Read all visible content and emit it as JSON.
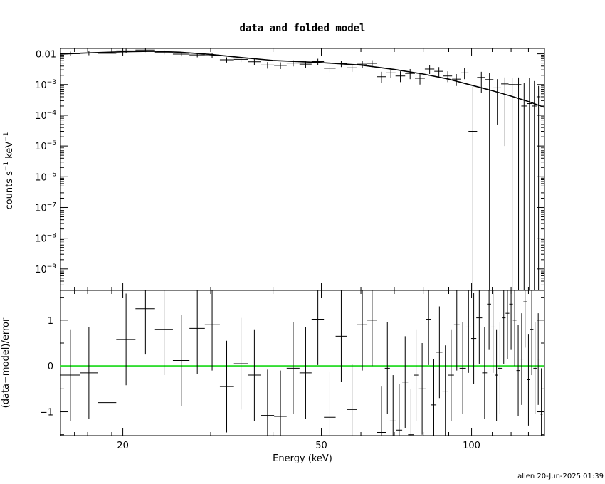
{
  "chart_data": [
    {
      "type": "scatter",
      "panel": "spectrum",
      "title": "data and folded model",
      "xlabel": "Energy (keV)",
      "ylabel_main": "counts s",
      "ylabel_sup1": "−1",
      "ylabel_mid": " keV",
      "ylabel_sup2": "−1",
      "x_scale": "log",
      "y_scale": "log",
      "xlim": [
        15,
        140
      ],
      "ylim": [
        2e-10,
        0.015
      ],
      "y_ticks": [
        {
          "value": 0.01,
          "label": "0.01"
        },
        {
          "value": 0.001,
          "base": "10",
          "exp": "−3"
        },
        {
          "value": 0.0001,
          "base": "10",
          "exp": "−4"
        },
        {
          "value": 1e-05,
          "base": "10",
          "exp": "−5"
        },
        {
          "value": 1e-06,
          "base": "10",
          "exp": "−6"
        },
        {
          "value": 1e-07,
          "base": "10",
          "exp": "−7"
        },
        {
          "value": 1e-08,
          "base": "10",
          "exp": "−8"
        },
        {
          "value": 1e-09,
          "base": "10",
          "exp": "−9"
        }
      ],
      "series": [
        {
          "kind": "data",
          "points": [
            {
              "x": 15.7,
              "xl": 15.0,
              "xh": 16.4,
              "y": 0.0101,
              "yl": 0.0085,
              "yh": 0.0118
            },
            {
              "x": 17.1,
              "xl": 16.4,
              "xh": 17.8,
              "y": 0.0107,
              "yl": 0.009,
              "yh": 0.0125
            },
            {
              "x": 18.6,
              "xl": 17.8,
              "xh": 19.4,
              "y": 0.0104,
              "yl": 0.0088,
              "yh": 0.0122
            },
            {
              "x": 20.3,
              "xl": 19.4,
              "xh": 21.2,
              "y": 0.0125,
              "yl": 0.0107,
              "yh": 0.0145
            },
            {
              "x": 22.2,
              "xl": 21.2,
              "xh": 23.2,
              "y": 0.0133,
              "yl": 0.0114,
              "yh": 0.0148
            },
            {
              "x": 24.2,
              "xl": 23.2,
              "xh": 25.2,
              "y": 0.0113,
              "yl": 0.0096,
              "yh": 0.0131
            },
            {
              "x": 26.2,
              "xl": 25.2,
              "xh": 27.2,
              "y": 0.0098,
              "yl": 0.0083,
              "yh": 0.0114
            },
            {
              "x": 28.2,
              "xl": 27.2,
              "xh": 29.2,
              "y": 0.0092,
              "yl": 0.0077,
              "yh": 0.0108
            },
            {
              "x": 30.2,
              "xl": 29.2,
              "xh": 31.3,
              "y": 0.0088,
              "yl": 0.0073,
              "yh": 0.0104
            },
            {
              "x": 32.3,
              "xl": 31.3,
              "xh": 33.4,
              "y": 0.0064,
              "yl": 0.0052,
              "yh": 0.0077
            },
            {
              "x": 34.5,
              "xl": 33.4,
              "xh": 35.6,
              "y": 0.0066,
              "yl": 0.0054,
              "yh": 0.0079
            },
            {
              "x": 36.7,
              "xl": 35.6,
              "xh": 37.8,
              "y": 0.0055,
              "yl": 0.0044,
              "yh": 0.0067
            },
            {
              "x": 39.0,
              "xl": 37.8,
              "xh": 40.2,
              "y": 0.0043,
              "yl": 0.0033,
              "yh": 0.0054
            },
            {
              "x": 41.4,
              "xl": 40.2,
              "xh": 42.6,
              "y": 0.0042,
              "yl": 0.0032,
              "yh": 0.0053
            },
            {
              "x": 43.9,
              "xl": 42.6,
              "xh": 45.2,
              "y": 0.005,
              "yl": 0.0039,
              "yh": 0.0062
            },
            {
              "x": 46.5,
              "xl": 45.2,
              "xh": 47.8,
              "y": 0.0046,
              "yl": 0.0035,
              "yh": 0.0058
            },
            {
              "x": 49.2,
              "xl": 47.8,
              "xh": 50.6,
              "y": 0.0056,
              "yl": 0.0044,
              "yh": 0.0069
            },
            {
              "x": 52.0,
              "xl": 50.6,
              "xh": 53.4,
              "y": 0.0034,
              "yl": 0.0025,
              "yh": 0.0044
            },
            {
              "x": 54.8,
              "xl": 53.4,
              "xh": 56.2,
              "y": 0.0048,
              "yl": 0.0037,
              "yh": 0.006
            },
            {
              "x": 57.6,
              "xl": 56.2,
              "xh": 59.0,
              "y": 0.0035,
              "yl": 0.0026,
              "yh": 0.0046
            },
            {
              "x": 60.4,
              "xl": 59.0,
              "xh": 61.8,
              "y": 0.0046,
              "yl": 0.0035,
              "yh": 0.0058
            },
            {
              "x": 63.2,
              "xl": 61.8,
              "xh": 64.6,
              "y": 0.0049,
              "yl": 0.0037,
              "yh": 0.0062
            },
            {
              "x": 66.0,
              "xl": 64.6,
              "xh": 67.4,
              "y": 0.0018,
              "yl": 0.0011,
              "yh": 0.0026
            },
            {
              "x": 68.9,
              "xl": 67.4,
              "xh": 70.4,
              "y": 0.0024,
              "yl": 0.0016,
              "yh": 0.0033
            },
            {
              "x": 72.0,
              "xl": 70.4,
              "xh": 73.6,
              "y": 0.0019,
              "yl": 0.0012,
              "yh": 0.0027
            },
            {
              "x": 75.3,
              "xl": 73.6,
              "xh": 77.0,
              "y": 0.0023,
              "yl": 0.0015,
              "yh": 0.0032
            },
            {
              "x": 78.8,
              "xl": 77.0,
              "xh": 80.6,
              "y": 0.0016,
              "yl": 0.001,
              "yh": 0.0023
            },
            {
              "x": 82.4,
              "xl": 80.6,
              "xh": 84.2,
              "y": 0.0032,
              "yl": 0.0022,
              "yh": 0.0043
            },
            {
              "x": 86.0,
              "xl": 84.2,
              "xh": 87.8,
              "y": 0.0027,
              "yl": 0.0018,
              "yh": 0.0037
            },
            {
              "x": 89.6,
              "xl": 87.8,
              "xh": 91.4,
              "y": 0.0019,
              "yl": 0.0012,
              "yh": 0.0027
            },
            {
              "x": 93.2,
              "xl": 91.4,
              "xh": 95.0,
              "y": 0.0015,
              "yl": 0.0009,
              "yh": 0.0022
            },
            {
              "x": 96.8,
              "xl": 95.0,
              "xh": 98.6,
              "y": 0.0024,
              "yl": 0.0015,
              "yh": 0.0034
            },
            {
              "x": 100.6,
              "xl": 98.6,
              "xh": 102.6,
              "y": 3e-05,
              "yl": 2e-10,
              "yh": 0.00085
            },
            {
              "x": 104.6,
              "xl": 102.6,
              "xh": 106.6,
              "y": 0.0017,
              "yl": 0.00055,
              "yh": 0.0026
            },
            {
              "x": 108.6,
              "xl": 106.6,
              "xh": 110.6,
              "y": 0.00145,
              "yl": 2e-10,
              "yh": 0.00235
            },
            {
              "x": 112.6,
              "xl": 110.6,
              "xh": 114.6,
              "y": 0.00078,
              "yl": 5e-05,
              "yh": 0.0015
            },
            {
              "x": 116.6,
              "xl": 114.6,
              "xh": 118.6,
              "y": 0.00105,
              "yl": 1e-05,
              "yh": 0.0017
            },
            {
              "x": 120.6,
              "xl": 118.6,
              "xh": 122.6,
              "y": 0.001,
              "yl": 2e-10,
              "yh": 0.00165
            },
            {
              "x": 124.2,
              "xl": 122.6,
              "xh": 125.8,
              "y": 0.001,
              "yl": 2e-10,
              "yh": 0.0017
            },
            {
              "x": 127.4,
              "xl": 125.8,
              "xh": 129.0,
              "y": 0.0002,
              "yl": 2e-10,
              "yh": 0.0011
            },
            {
              "x": 130.6,
              "xl": 129.0,
              "xh": 132.2,
              "y": 0.00024,
              "yl": 2e-10,
              "yh": 0.0016
            },
            {
              "x": 133.6,
              "xl": 132.2,
              "xh": 135.0,
              "y": 0.0002,
              "yl": 2e-10,
              "yh": 0.0013
            },
            {
              "x": 136.2,
              "xl": 135.0,
              "xh": 137.4,
              "y": 0.0004,
              "yl": 2e-10,
              "yh": 0.0009
            }
          ]
        },
        {
          "kind": "model",
          "x": [
            15.0,
            17.0,
            20.0,
            23.0,
            26.0,
            30.0,
            35.0,
            40.0,
            50.0,
            60.0,
            70.0,
            80.0,
            90.0,
            100.0,
            110.0,
            120.0,
            130.0,
            140.0
          ],
          "y": [
            0.0098,
            0.0107,
            0.0117,
            0.0121,
            0.0113,
            0.0096,
            0.0074,
            0.0061,
            0.0052,
            0.0043,
            0.0031,
            0.0022,
            0.0015,
            0.00095,
            0.00063,
            0.00042,
            0.00028,
            0.00018
          ]
        }
      ]
    },
    {
      "type": "scatter",
      "panel": "residuals",
      "xlabel": "Energy (keV)",
      "ylabel": "(data−model)/error",
      "x_scale": "log",
      "xlim": [
        15,
        140
      ],
      "ylim": [
        -1.52,
        1.65
      ],
      "y_ticks": [
        {
          "value": 1,
          "label": "1"
        },
        {
          "value": 0,
          "label": "0"
        },
        {
          "value": -1,
          "label": "−1"
        }
      ],
      "x_ticks": [
        {
          "value": 20,
          "label": "20"
        },
        {
          "value": 50,
          "label": "50"
        },
        {
          "value": 100,
          "label": "100"
        }
      ],
      "zero_line_color": "#33dd33",
      "points": [
        {
          "x": 15.7,
          "xl": 15.0,
          "xh": 16.4,
          "y": -0.2,
          "yl": -1.2,
          "yh": 0.8
        },
        {
          "x": 17.1,
          "xl": 16.4,
          "xh": 17.8,
          "y": -0.15,
          "yl": -1.15,
          "yh": 0.85
        },
        {
          "x": 18.6,
          "xl": 17.8,
          "xh": 19.4,
          "y": -0.8,
          "yl": -1.52,
          "yh": 0.2
        },
        {
          "x": 20.3,
          "xl": 19.4,
          "xh": 21.2,
          "y": 0.58,
          "yl": -0.42,
          "yh": 1.58
        },
        {
          "x": 22.2,
          "xl": 21.2,
          "xh": 23.2,
          "y": 1.25,
          "yl": 0.25,
          "yh": 1.65
        },
        {
          "x": 24.2,
          "xl": 23.2,
          "xh": 25.2,
          "y": 0.8,
          "yl": -0.2,
          "yh": 1.65
        },
        {
          "x": 26.2,
          "xl": 25.2,
          "xh": 27.2,
          "y": 0.12,
          "yl": -0.88,
          "yh": 1.12
        },
        {
          "x": 28.2,
          "xl": 27.2,
          "xh": 29.2,
          "y": 0.82,
          "yl": -0.18,
          "yh": 1.65
        },
        {
          "x": 30.2,
          "xl": 29.2,
          "xh": 31.3,
          "y": 0.9,
          "yl": -0.1,
          "yh": 1.65
        },
        {
          "x": 32.3,
          "xl": 31.3,
          "xh": 33.4,
          "y": -0.45,
          "yl": -1.45,
          "yh": 0.55
        },
        {
          "x": 34.5,
          "xl": 33.4,
          "xh": 35.6,
          "y": 0.05,
          "yl": -0.95,
          "yh": 1.05
        },
        {
          "x": 36.7,
          "xl": 35.6,
          "xh": 37.8,
          "y": -0.2,
          "yl": -1.2,
          "yh": 0.8
        },
        {
          "x": 39.0,
          "xl": 37.8,
          "xh": 40.2,
          "y": -1.08,
          "yl": -1.52,
          "yh": -0.08
        },
        {
          "x": 41.4,
          "xl": 40.2,
          "xh": 42.6,
          "y": -1.1,
          "yl": -1.52,
          "yh": -0.1
        },
        {
          "x": 43.9,
          "xl": 42.6,
          "xh": 45.2,
          "y": -0.05,
          "yl": -1.05,
          "yh": 0.95
        },
        {
          "x": 46.5,
          "xl": 45.2,
          "xh": 47.8,
          "y": -0.15,
          "yl": -1.15,
          "yh": 0.85
        },
        {
          "x": 49.2,
          "xl": 47.8,
          "xh": 50.6,
          "y": 1.02,
          "yl": 0.02,
          "yh": 1.65
        },
        {
          "x": 52.0,
          "xl": 50.6,
          "xh": 53.4,
          "y": -1.12,
          "yl": -1.52,
          "yh": -0.12
        },
        {
          "x": 54.8,
          "xl": 53.4,
          "xh": 56.2,
          "y": 0.65,
          "yl": -0.35,
          "yh": 1.65
        },
        {
          "x": 57.6,
          "xl": 56.2,
          "xh": 59.0,
          "y": -0.95,
          "yl": -1.52,
          "yh": 0.05
        },
        {
          "x": 60.4,
          "xl": 59.0,
          "xh": 61.8,
          "y": 0.9,
          "yl": -0.1,
          "yh": 1.65
        },
        {
          "x": 63.2,
          "xl": 61.8,
          "xh": 64.6,
          "y": 1.0,
          "yl": 0.0,
          "yh": 1.65
        },
        {
          "x": 66.0,
          "xl": 64.6,
          "xh": 67.4,
          "y": -1.45,
          "yl": -1.52,
          "yh": -0.45
        },
        {
          "x": 67.8,
          "xl": 67.0,
          "xh": 68.6,
          "y": -0.05,
          "yl": -1.05,
          "yh": 0.95
        },
        {
          "x": 69.6,
          "xl": 68.6,
          "xh": 70.6,
          "y": -1.2,
          "yl": -1.52,
          "yh": -0.2
        },
        {
          "x": 71.6,
          "xl": 70.6,
          "xh": 72.6,
          "y": -1.4,
          "yl": -1.52,
          "yh": -0.4
        },
        {
          "x": 73.6,
          "xl": 72.6,
          "xh": 74.6,
          "y": -0.35,
          "yl": -1.35,
          "yh": 0.65
        },
        {
          "x": 75.6,
          "xl": 74.6,
          "xh": 76.6,
          "y": -1.5,
          "yl": -1.52,
          "yh": -0.5
        },
        {
          "x": 77.4,
          "xl": 76.6,
          "xh": 78.2,
          "y": -0.2,
          "yl": -1.2,
          "yh": 0.8
        },
        {
          "x": 79.6,
          "xl": 78.2,
          "xh": 81.0,
          "y": -0.5,
          "yl": -1.5,
          "yh": 0.5
        },
        {
          "x": 82.0,
          "xl": 81.0,
          "xh": 83.0,
          "y": 1.02,
          "yl": 0.02,
          "yh": 1.65
        },
        {
          "x": 84.0,
          "xl": 83.0,
          "xh": 85.0,
          "y": -0.85,
          "yl": -1.52,
          "yh": 0.15
        },
        {
          "x": 86.2,
          "xl": 85.0,
          "xh": 87.4,
          "y": 0.3,
          "yl": -0.7,
          "yh": 1.3
        },
        {
          "x": 88.6,
          "xl": 87.4,
          "xh": 89.8,
          "y": -0.55,
          "yl": -1.52,
          "yh": 0.45
        },
        {
          "x": 91.0,
          "xl": 89.8,
          "xh": 92.2,
          "y": -0.2,
          "yl": -1.2,
          "yh": 0.8
        },
        {
          "x": 93.4,
          "xl": 92.2,
          "xh": 94.6,
          "y": 0.9,
          "yl": -0.1,
          "yh": 1.65
        },
        {
          "x": 96.0,
          "xl": 94.6,
          "xh": 97.4,
          "y": -0.05,
          "yl": -1.05,
          "yh": 0.95
        },
        {
          "x": 98.6,
          "xl": 97.4,
          "xh": 99.8,
          "y": 0.85,
          "yl": -0.15,
          "yh": 1.65
        },
        {
          "x": 101.0,
          "xl": 99.8,
          "xh": 102.2,
          "y": 0.6,
          "yl": -0.4,
          "yh": 1.6
        },
        {
          "x": 103.6,
          "xl": 102.2,
          "xh": 105.0,
          "y": 1.05,
          "yl": 0.05,
          "yh": 1.65
        },
        {
          "x": 106.2,
          "xl": 105.0,
          "xh": 107.4,
          "y": -0.15,
          "yl": -1.15,
          "yh": 0.85
        },
        {
          "x": 108.4,
          "xl": 107.4,
          "xh": 109.4,
          "y": 1.35,
          "yl": 0.35,
          "yh": 1.65
        },
        {
          "x": 110.4,
          "xl": 109.4,
          "xh": 111.4,
          "y": 0.85,
          "yl": -0.15,
          "yh": 1.65
        },
        {
          "x": 112.2,
          "xl": 111.4,
          "xh": 113.0,
          "y": -0.2,
          "yl": -1.2,
          "yh": 0.8
        },
        {
          "x": 114.0,
          "xl": 113.0,
          "xh": 115.0,
          "y": -0.05,
          "yl": -1.05,
          "yh": 0.95
        },
        {
          "x": 116.0,
          "xl": 115.0,
          "xh": 117.0,
          "y": 1.05,
          "yl": 0.05,
          "yh": 1.65
        },
        {
          "x": 118.0,
          "xl": 117.0,
          "xh": 119.0,
          "y": 1.15,
          "yl": 0.15,
          "yh": 1.65
        },
        {
          "x": 120.0,
          "xl": 119.0,
          "xh": 121.0,
          "y": 1.35,
          "yl": 0.35,
          "yh": 1.65
        },
        {
          "x": 122.0,
          "xl": 121.0,
          "xh": 123.0,
          "y": 1.0,
          "yl": 0.0,
          "yh": 1.65
        },
        {
          "x": 124.0,
          "xl": 123.0,
          "xh": 125.0,
          "y": -0.1,
          "yl": -1.1,
          "yh": 0.9
        },
        {
          "x": 126.0,
          "xl": 125.0,
          "xh": 127.0,
          "y": 0.15,
          "yl": -0.85,
          "yh": 1.15
        },
        {
          "x": 128.0,
          "xl": 127.0,
          "xh": 129.0,
          "y": 1.4,
          "yl": 0.4,
          "yh": 1.65
        },
        {
          "x": 130.0,
          "xl": 129.0,
          "xh": 131.0,
          "y": -0.3,
          "yl": -1.3,
          "yh": 0.7
        },
        {
          "x": 132.0,
          "xl": 131.0,
          "xh": 133.0,
          "y": 0.8,
          "yl": -0.2,
          "yh": 1.65
        },
        {
          "x": 134.0,
          "xl": 133.0,
          "xh": 135.0,
          "y": -0.05,
          "yl": -1.05,
          "yh": 0.95
        },
        {
          "x": 136.0,
          "xl": 135.0,
          "xh": 137.0,
          "y": 0.15,
          "yl": -0.85,
          "yh": 1.15
        },
        {
          "x": 138.0,
          "xl": 137.0,
          "xh": 139.0,
          "y": -1.05,
          "yl": -1.52,
          "yh": -0.05
        }
      ]
    }
  ],
  "footer_stamp": "allen 20-Jun-2025 01:39"
}
